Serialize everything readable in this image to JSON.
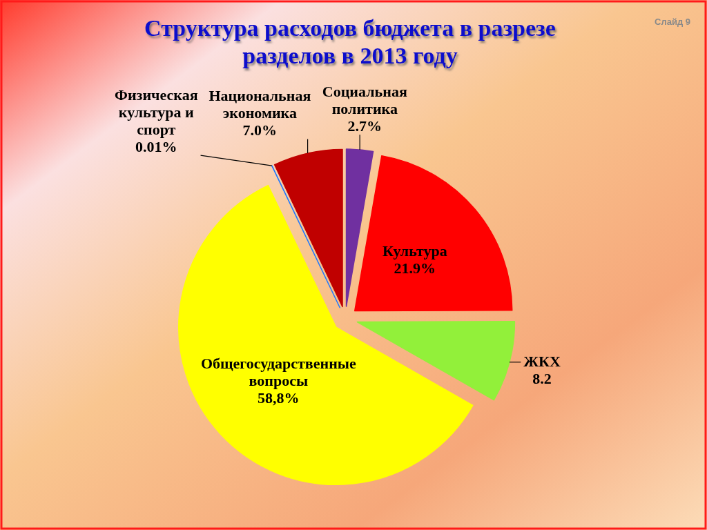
{
  "chart_data": {
    "type": "pie",
    "title": "Структура расходов бюджета в разрезе разделов в 2013 году",
    "categories": [
      "Социальная политика",
      "Культура",
      "ЖКХ",
      "Общегосударственные вопросы",
      "Физическая культура и спорт",
      "Национальная экономика"
    ],
    "values": [
      2.7,
      21.9,
      8.2,
      58.8,
      0.01,
      7.0
    ],
    "colors": [
      "#7030a0",
      "#ff0000",
      "#92f03a",
      "#ffff00",
      "#1f78ff",
      "#c00000"
    ],
    "value_labels": [
      "2.7%",
      "21.9%",
      "8.2",
      "58,8%",
      "0.01%",
      "7.0%"
    ],
    "annotations": [
      "Слайд 9"
    ]
  }
}
